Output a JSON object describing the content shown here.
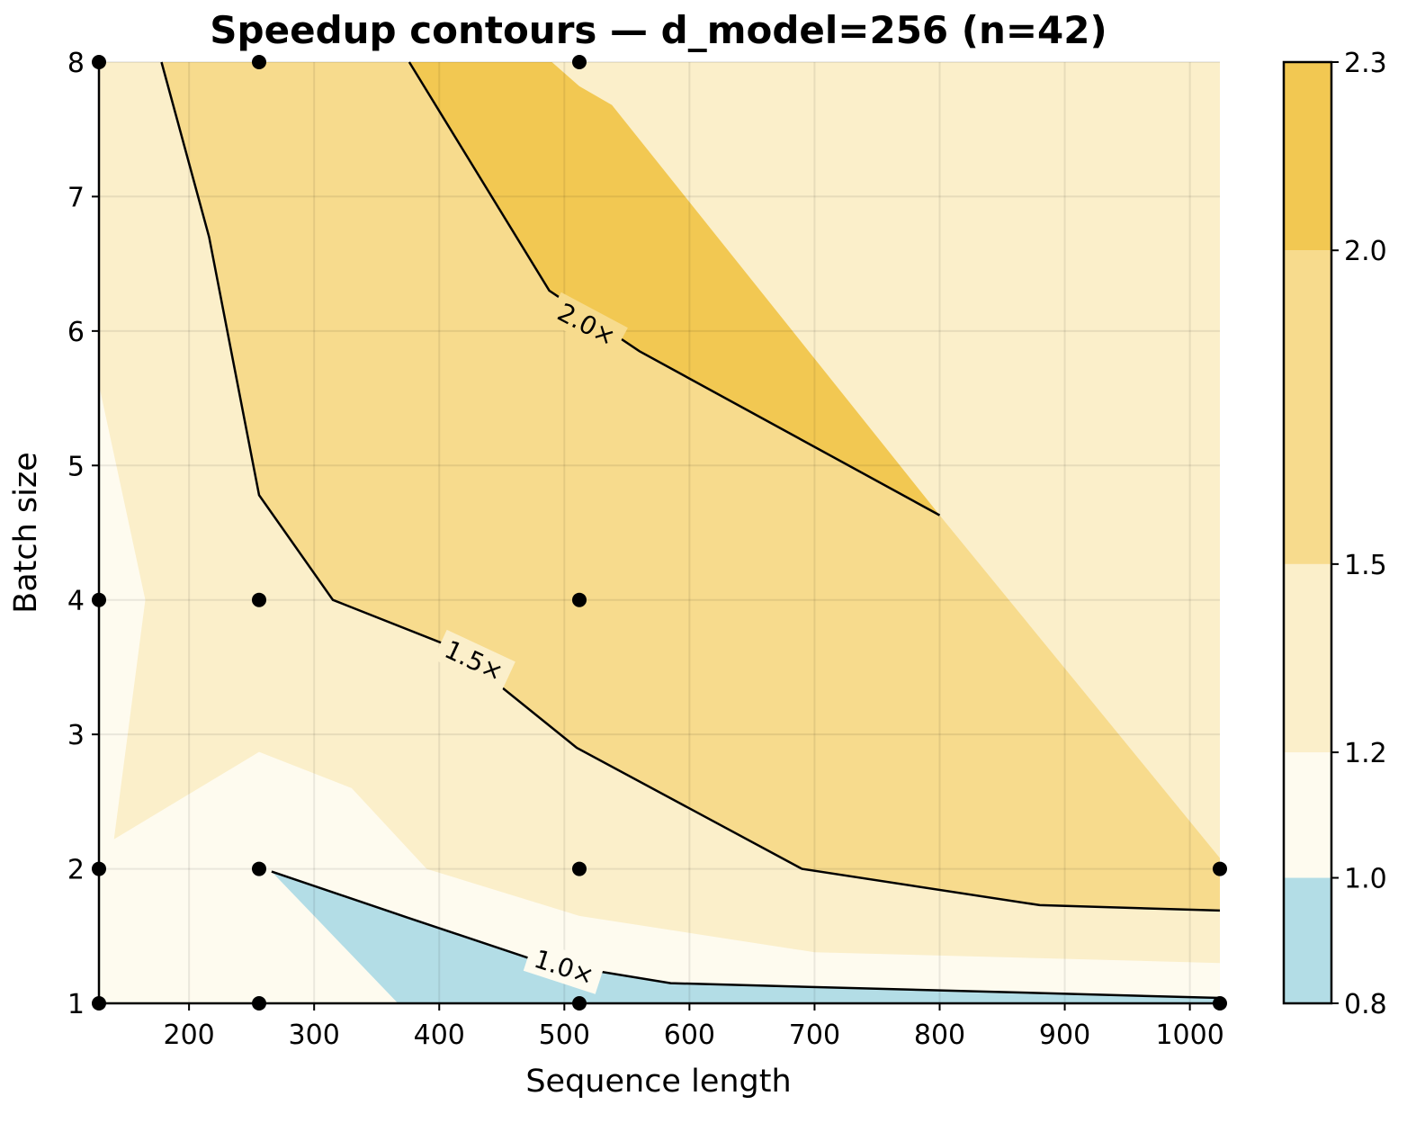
{
  "chart_data": {
    "type": "contourf",
    "title": "Speedup contours — d_model=256  (n=42)",
    "xlabel": "Sequence length",
    "ylabel": "Batch size",
    "xlim": [
      128,
      1024
    ],
    "ylim": [
      1,
      8
    ],
    "x_ticks": [
      200,
      300,
      400,
      500,
      600,
      700,
      800,
      900,
      1000
    ],
    "y_ticks": [
      1,
      2,
      3,
      4,
      5,
      6,
      7,
      8
    ],
    "grid": true,
    "levels": [
      0.8,
      1.0,
      1.2,
      1.5,
      2.0,
      2.3
    ],
    "colorbar_tick_labels": [
      "0.8",
      "1.0",
      "1.2",
      "1.5",
      "2.0",
      "2.3"
    ],
    "band_colors": [
      "#b3dde6",
      "#fefbef",
      "#fbefca",
      "#f7db8d",
      "#f2c852"
    ],
    "contour_lines": [
      {
        "label": "1.0×",
        "points": [
          [
            266,
            1.98
          ],
          [
            374,
            1.64
          ],
          [
            480,
            1.31
          ],
          [
            585,
            1.15
          ],
          [
            1024,
            1.04
          ]
        ],
        "label_at": [
          500,
          1.27
        ],
        "label_angle": 18
      },
      {
        "label": "1.5×",
        "points": [
          [
            178,
            8
          ],
          [
            216,
            6.7
          ],
          [
            256,
            4.78
          ],
          [
            315,
            4.0
          ],
          [
            410,
            3.65
          ],
          [
            510,
            2.9
          ],
          [
            690,
            2.0
          ],
          [
            880,
            1.73
          ],
          [
            1024,
            1.69
          ]
        ],
        "label_at": [
          428,
          3.55
        ],
        "label_angle": 25
      },
      {
        "label": "2.0×",
        "points": [
          [
            376,
            8
          ],
          [
            488,
            6.3
          ],
          [
            560,
            5.85
          ],
          [
            800,
            4.63
          ]
        ],
        "label_at": [
          518,
          6.05
        ],
        "label_angle": 28
      }
    ],
    "scatter_points": [
      [
        128,
        8
      ],
      [
        256,
        8
      ],
      [
        512,
        8
      ],
      [
        128,
        4
      ],
      [
        256,
        4
      ],
      [
        512,
        4
      ],
      [
        128,
        2
      ],
      [
        256,
        2
      ],
      [
        512,
        2
      ],
      [
        1024,
        2
      ],
      [
        128,
        1
      ],
      [
        256,
        1
      ],
      [
        512,
        1
      ],
      [
        1024,
        1
      ]
    ]
  }
}
